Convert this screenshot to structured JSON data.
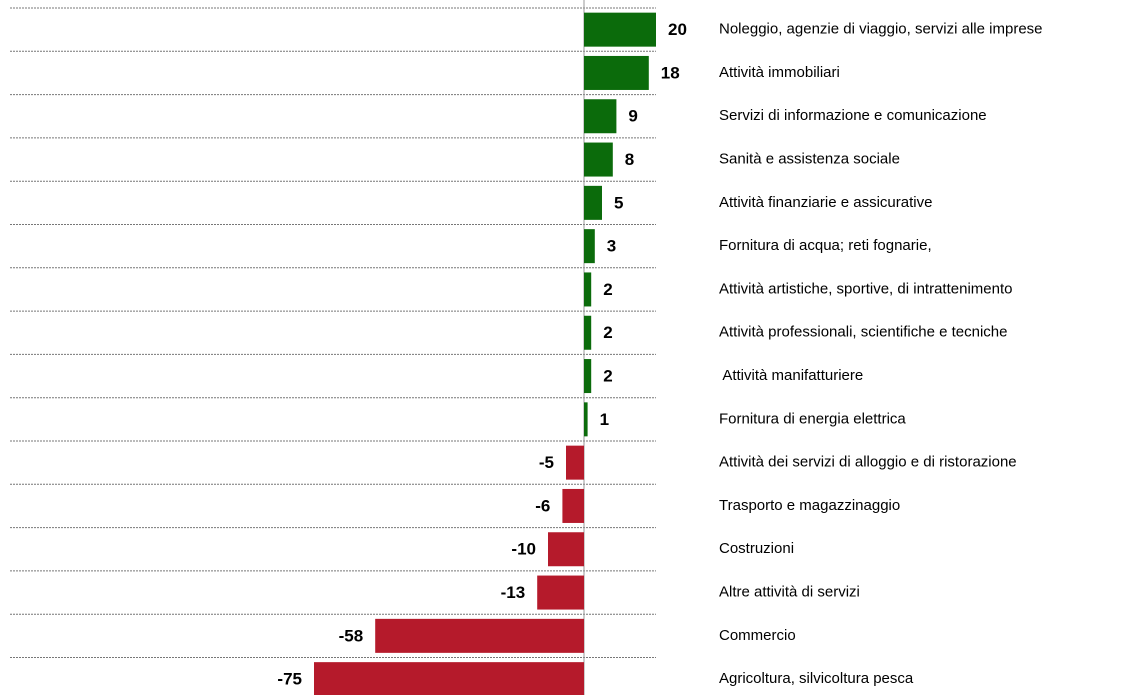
{
  "chart_data": {
    "type": "hbar",
    "categories": [
      "Noleggio, agenzie di viaggio, servizi alle imprese",
      "Attività immobiliari",
      "Servizi di informazione e comunicazione",
      "Sanità e assistenza sociale",
      "Attività finanziarie e assicurative",
      "Fornitura di acqua; reti fognarie,",
      "Attività artistiche, sportive, di intrattenimento",
      "Attività professionali, scientifiche e tecniche",
      " Attività manifatturiere",
      "Fornitura di energia elettrica",
      "Attività dei servizi di alloggio e di ristorazione",
      "Trasporto e magazzinaggio",
      "Costruzioni",
      "Altre attività di servizi",
      "Commercio",
      "Agricoltura, silvicoltura pesca"
    ],
    "values": [
      20,
      18,
      9,
      8,
      5,
      3,
      2,
      2,
      2,
      1,
      -5,
      -6,
      -10,
      -13,
      -58,
      -75
    ],
    "positive_color": "#0b6b0b",
    "negative_color": "#b51a2b",
    "xlim": [
      -75,
      20
    ],
    "grid": true
  }
}
